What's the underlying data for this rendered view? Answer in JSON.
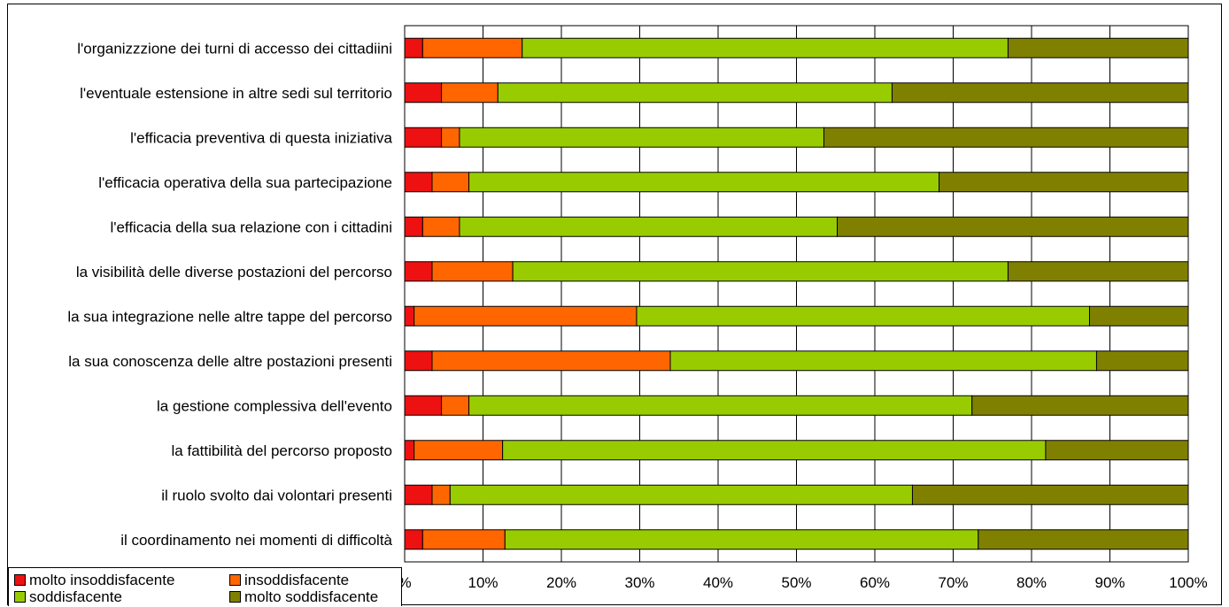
{
  "chart_data": {
    "type": "bar",
    "orientation": "horizontal",
    "stacked": "percent",
    "title": "",
    "xlabel": "",
    "ylabel": "",
    "xlim": [
      0,
      100
    ],
    "x_ticks": [
      "%",
      "10%",
      "20%",
      "30%",
      "40%",
      "50%",
      "60%",
      "70%",
      "80%",
      "90%",
      "100%"
    ],
    "grid": "vertical",
    "legend_position": "bottom-left",
    "categories": [
      "l'organizzzione dei turni di accesso dei cittadiini",
      "l'eventuale estensione in altre sedi sul territorio",
      "l'efficacia preventiva di questa iniziativa",
      "l'efficacia operativa della sua partecipazione",
      "l'efficacia della sua relazione con i cittadini",
      "la visibilità  delle diverse postazioni del percorso",
      "la sua integrazione nelle altre tappe del percorso",
      "la sua conoscenza delle altre postazioni presenti",
      "la gestione complessiva dell'evento",
      "la fattibilità  del percorso proposto",
      "il ruolo svolto dai volontari presenti",
      "il coordinamento nei momenti di difficoltà"
    ],
    "series": [
      {
        "name": "molto insoddisfacente",
        "color": "#ee1111",
        "values": [
          2.3,
          4.7,
          4.7,
          3.5,
          2.3,
          3.5,
          1.2,
          3.5,
          4.7,
          1.2,
          3.5,
          2.3
        ]
      },
      {
        "name": "insoddisfacente",
        "color": "#ff6600",
        "values": [
          12.7,
          7.2,
          2.3,
          4.7,
          4.7,
          10.3,
          28.4,
          30.4,
          3.5,
          11.3,
          2.3,
          10.5
        ]
      },
      {
        "name": "soddisfacente",
        "color": "#99cc00",
        "values": [
          62.0,
          50.3,
          46.5,
          60.0,
          48.2,
          63.2,
          57.8,
          54.4,
          64.2,
          69.3,
          59.0,
          60.4
        ]
      },
      {
        "name": "molto soddisfacente",
        "color": "#808000",
        "values": [
          23.0,
          37.8,
          46.5,
          31.8,
          44.8,
          23.0,
          12.6,
          11.7,
          27.6,
          18.2,
          35.2,
          26.8
        ]
      }
    ]
  }
}
